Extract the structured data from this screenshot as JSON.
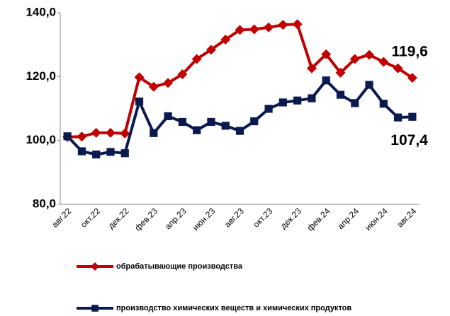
{
  "chart_data": {
    "type": "line",
    "categories": [
      "авг.22",
      null,
      "окт.22",
      null,
      "дек.22",
      null,
      "фев.23",
      null,
      "апр.23",
      null,
      "июн.23",
      null,
      "авг.23",
      null,
      "окт.23",
      null,
      "дек.23",
      null,
      "фев.24",
      null,
      "апр.24",
      null,
      "июн.24",
      null,
      "авг.24"
    ],
    "series": [
      {
        "name": "обрабатывающие производства",
        "color": "#c00000",
        "marker": "diamond",
        "values": [
          101.1,
          101.2,
          102.4,
          102.4,
          102.2,
          119.8,
          116.8,
          118.0,
          120.7,
          125.5,
          128.4,
          131.6,
          134.6,
          134.8,
          135.4,
          136.2,
          136.4,
          122.6,
          127.0,
          121.2,
          125.5,
          126.8,
          124.6,
          122.6,
          119.6
        ],
        "value_labels": [
          null,
          null,
          null,
          null,
          null,
          null,
          null,
          null,
          null,
          null,
          null,
          null,
          null,
          null,
          null,
          null,
          null,
          null,
          null,
          null,
          null,
          null,
          null,
          null,
          "119,6"
        ]
      },
      {
        "name": "производство химических веществ и химических продуктов",
        "color": "#0a1a4f",
        "marker": "square",
        "values": [
          101.3,
          96.6,
          95.6,
          96.4,
          96.0,
          112.2,
          102.3,
          107.6,
          105.8,
          103.2,
          105.8,
          104.6,
          103.0,
          106.0,
          109.9,
          111.9,
          112.5,
          113.2,
          118.8,
          114.3,
          111.7,
          117.4,
          111.5,
          107.2,
          107.4
        ],
        "value_labels": [
          null,
          null,
          null,
          null,
          null,
          null,
          null,
          null,
          null,
          null,
          null,
          null,
          null,
          null,
          null,
          null,
          null,
          null,
          null,
          null,
          null,
          null,
          null,
          null,
          "107,4"
        ]
      }
    ],
    "ylim": [
      80,
      140
    ],
    "yticks": [
      {
        "value": 80,
        "label": "80,0"
      },
      {
        "value": 100,
        "label": "100,0"
      },
      {
        "value": 120,
        "label": "120,0"
      },
      {
        "value": 140,
        "label": "140,0"
      }
    ],
    "grid": false
  }
}
